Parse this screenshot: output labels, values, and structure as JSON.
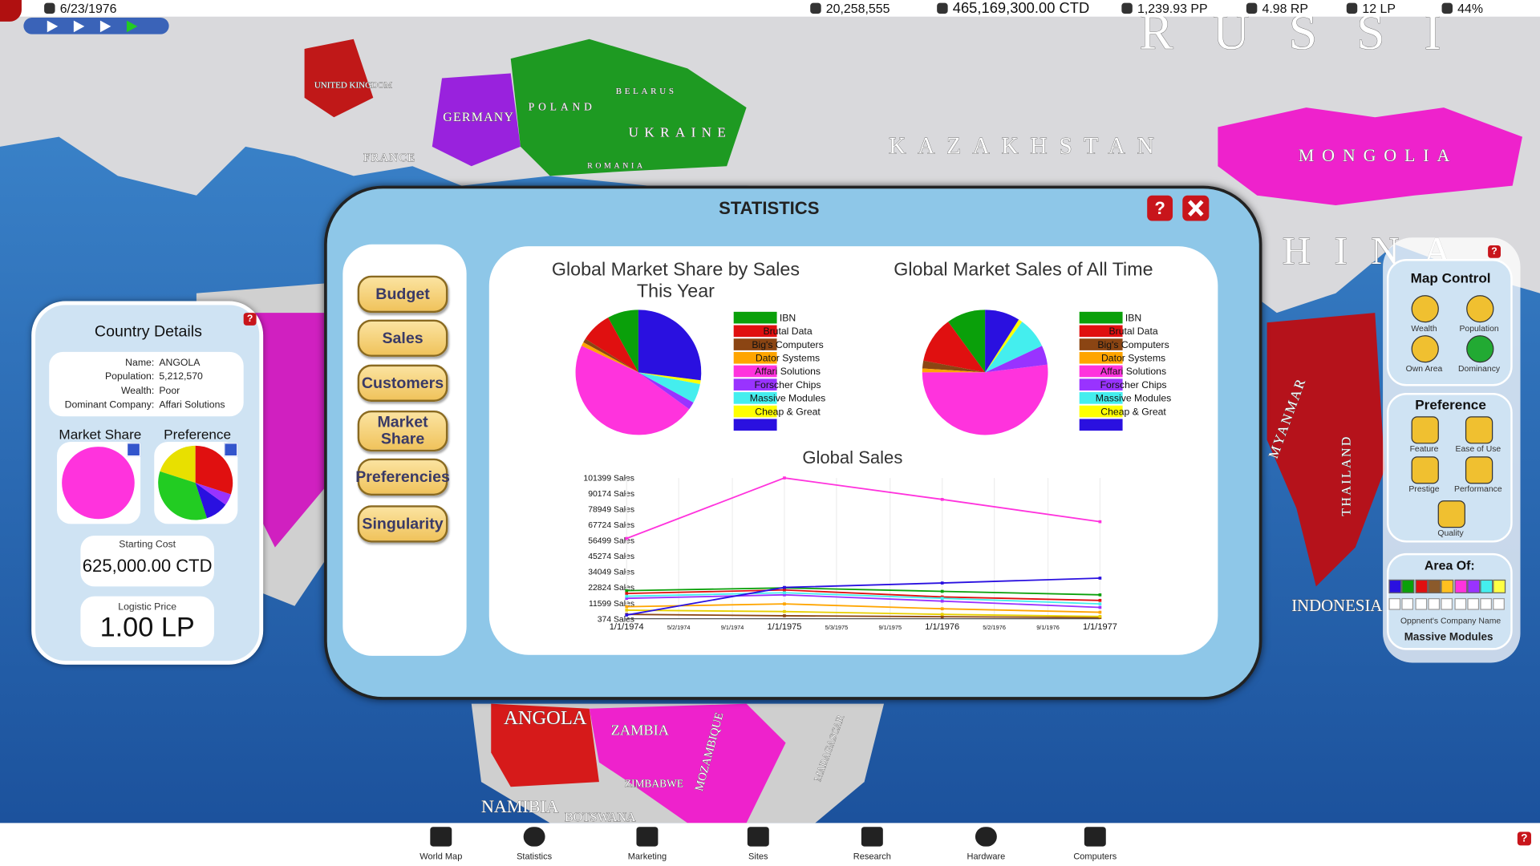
{
  "top_bar": {
    "date": "6/23/1976",
    "population": "20,258,555",
    "money": "465,169,300.00 CTD",
    "pp": "1,239.93 PP",
    "rp": "4.98 RP",
    "lp": "12 LP",
    "share": "44%"
  },
  "map_labels": [
    "RUSSI",
    "KAZAKHSTAN",
    "MONGOLIA",
    "CHINA",
    "GERMANY",
    "POLAND",
    "UKRAINE",
    "BELARUS",
    "FRANCE",
    "UNITED KINGDOM",
    "ROMANIA",
    "ANGOLA",
    "ZAMBIA",
    "NAMIBIA",
    "BOTSWANA",
    "ZIMBABWE",
    "MOZAMBIQUE",
    "MADAGASCAR",
    "MYANMAR",
    "THAILAND",
    "INDONESIA"
  ],
  "help": "?",
  "dialog": {
    "title": "STATISTICS",
    "buttons": [
      "Budget",
      "Sales",
      "Customers",
      "Market Share",
      "Preferencies",
      "Singularity"
    ]
  },
  "country_details": {
    "title": "Country Details",
    "fields": [
      {
        "label": "Name:",
        "value": "ANGOLA"
      },
      {
        "label": "Population:",
        "value": "5,212,570"
      },
      {
        "label": "Wealth:",
        "value": "Poor"
      },
      {
        "label": "Dominant Company:",
        "value": "Affari Solutions"
      }
    ],
    "starting_cost_label": "Starting Cost",
    "starting_cost": "625,000.00 CTD",
    "logistic_price_label": "Logistic Price",
    "logistic_price": "1.00 LP"
  },
  "map_control": {
    "title": "Map Control",
    "items": [
      "Wealth",
      "Population",
      "Own Area",
      "Dominancy"
    ]
  },
  "preference_panel": {
    "title": "Preference",
    "items": [
      "Feature",
      "Ease of Use",
      "Prestige",
      "Performance",
      "Quality"
    ]
  },
  "area_of": {
    "title": "Area Of:",
    "colors": [
      "#2a10e0",
      "#0aa00a",
      "#e01010",
      "#8b5a2b",
      "#ffc020",
      "#ff33dd",
      "#9933ff",
      "#44eeee",
      "#ffff44"
    ],
    "label": "Oppnent's Company Name",
    "company": "Massive Modules"
  },
  "bottom_bar": [
    "World Map",
    "Statistics",
    "Marketing",
    "Sites",
    "Research",
    "Hardware",
    "Computers"
  ],
  "chart_data": [
    {
      "type": "pie",
      "title": "Global Market Share by Sales This Year",
      "categories": [
        "IBN",
        "Brutal Data",
        "Big's Computers",
        "Dator Systems",
        "Affari Solutions",
        "Forscher Chips",
        "Massive Modules",
        "Cheap & Great",
        null
      ],
      "values": [
        8,
        8,
        1,
        1,
        47,
        2,
        5,
        1,
        27
      ],
      "colors": [
        "#0aa00a",
        "#e01010",
        "#8b4513",
        "#ffa500",
        "#ff33dd",
        "#9933ff",
        "#44eeee",
        "#ffff00",
        "#2a10e0"
      ]
    },
    {
      "type": "pie",
      "title": "Global Market Sales of All Time",
      "categories": [
        "IBN",
        "Brutal Data",
        "Big's Computers",
        "Dator Systems",
        "Affari Solutions",
        "Forscher Chips",
        "Massive Modules",
        "Cheap & Great",
        null
      ],
      "values": [
        10,
        12,
        2,
        1,
        52,
        5,
        8,
        1,
        9
      ],
      "colors": [
        "#0aa00a",
        "#e01010",
        "#8b4513",
        "#ffa500",
        "#ff33dd",
        "#9933ff",
        "#44eeee",
        "#ffff00",
        "#2a10e0"
      ]
    },
    {
      "type": "line",
      "title": "Global Sales",
      "x": [
        1974,
        1975,
        1976,
        1977
      ],
      "xlim": [
        1974,
        1977
      ],
      "xticks": [
        {
          "value": 1974,
          "label": "1/1/1974"
        },
        {
          "value": 1974.33,
          "label": "5/2/1974"
        },
        {
          "value": 1974.67,
          "label": "9/1/1974"
        },
        {
          "value": 1975,
          "label": "1/1/1975"
        },
        {
          "value": 1975.33,
          "label": "5/3/1975"
        },
        {
          "value": 1975.67,
          "label": "9/1/1975"
        },
        {
          "value": 1976,
          "label": "1/1/1976"
        },
        {
          "value": 1976.33,
          "label": "5/2/1976"
        },
        {
          "value": 1976.67,
          "label": "9/1/1976"
        },
        {
          "value": 1977,
          "label": "1/1/1977"
        }
      ],
      "ylim": [
        374,
        101399
      ],
      "yticks": [
        {
          "value": 374,
          "label": "374 Sales"
        },
        {
          "value": 11599,
          "label": "11599 Sales"
        },
        {
          "value": 22824,
          "label": "22824 Sales"
        },
        {
          "value": 34049,
          "label": "34049 Sales"
        },
        {
          "value": 45274,
          "label": "45274 Sales"
        },
        {
          "value": 56499,
          "label": "56499 Sales"
        },
        {
          "value": 67724,
          "label": "67724 Sales"
        },
        {
          "value": 78949,
          "label": "78949 Sales"
        },
        {
          "value": 90174,
          "label": "90174 Sales"
        },
        {
          "value": 101399,
          "label": "101399 Sales"
        }
      ],
      "series": [
        {
          "color": "#0aa00a",
          "values": [
            20500,
            22500,
            20000,
            17500
          ]
        },
        {
          "color": "#e01010",
          "values": [
            18500,
            21000,
            16000,
            13500
          ]
        },
        {
          "color": "#8b4513",
          "values": [
            3500,
            2500,
            1800,
            1200
          ]
        },
        {
          "color": "#ffa500",
          "values": [
            9000,
            11000,
            7500,
            5000
          ]
        },
        {
          "color": "#ff33dd",
          "values": [
            58000,
            101399,
            86000,
            70000
          ]
        },
        {
          "color": "#9933ff",
          "values": [
            15000,
            17500,
            13000,
            8500
          ]
        },
        {
          "color": "#44eeee",
          "values": [
            16500,
            19000,
            15000,
            11000
          ]
        },
        {
          "color": "#e8d000",
          "values": [
            6500,
            5500,
            3500,
            2000
          ]
        },
        {
          "color": "#2a10e0",
          "values": [
            3000,
            22824,
            26000,
            29500
          ]
        }
      ]
    },
    {
      "type": "pie",
      "title": "Market Share",
      "values": [
        100
      ],
      "colors": [
        "#ff33dd"
      ]
    },
    {
      "type": "pie",
      "title": "Preference",
      "values": [
        20,
        35,
        10,
        5,
        30
      ],
      "colors": [
        "#e8e000",
        "#22cc22",
        "#2a10e0",
        "#9933ff",
        "#e01010"
      ]
    }
  ]
}
